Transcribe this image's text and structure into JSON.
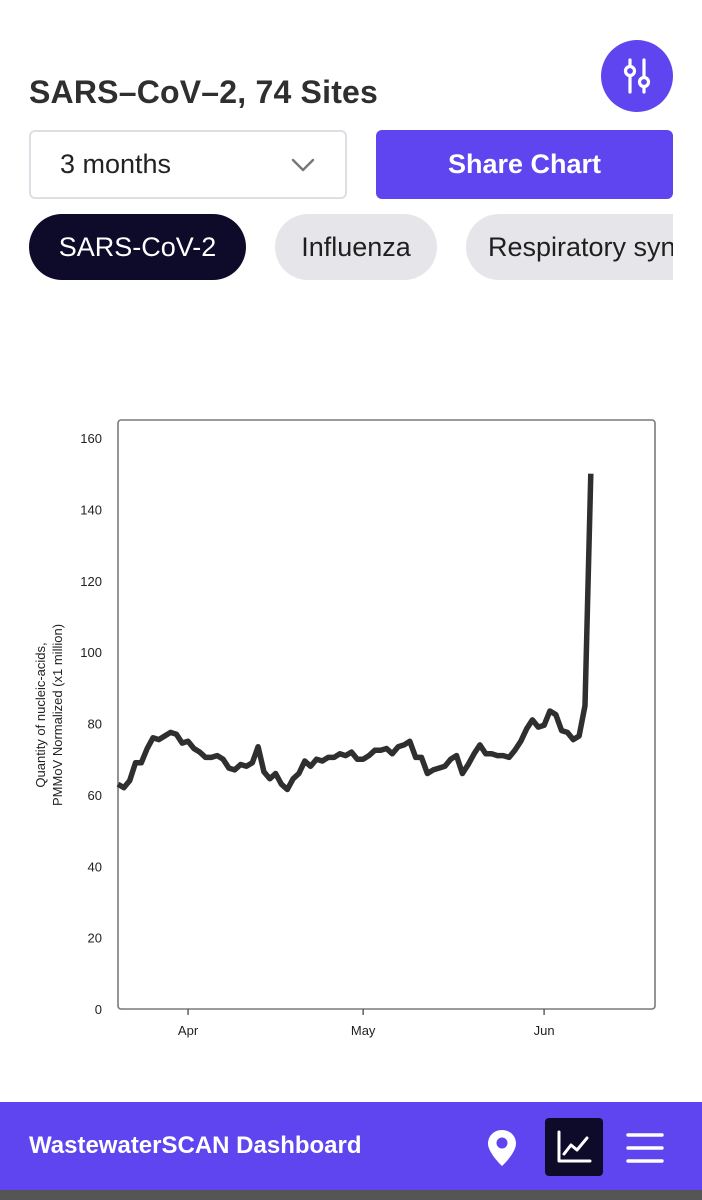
{
  "colors": {
    "accent": "#5f45f0",
    "dark": "#0e0a2a",
    "line": "#2f2f2f"
  },
  "header": {
    "title": "SARS–CoV–2, 74 Sites",
    "filter_icon": "sliders-icon"
  },
  "controls": {
    "range_value": "3 months",
    "range_icon": "chevron-down-icon",
    "share_label": "Share Chart"
  },
  "pathogens": [
    {
      "label": "SARS-CoV-2",
      "active": true
    },
    {
      "label": "Influenza",
      "active": false
    },
    {
      "label": "Respiratory syncytial virus",
      "active": false
    }
  ],
  "chart_data": {
    "type": "line",
    "title": "",
    "xlabel": "",
    "ylabel": [
      "Quantity of nucleic-acids,",
      "PMMoV Normalized (x1 million)"
    ],
    "ylim": [
      0,
      160
    ],
    "yticks": [
      0,
      20,
      40,
      60,
      80,
      100,
      120,
      140,
      160
    ],
    "xlim": [
      "2023-03-20",
      "2023-06-20"
    ],
    "xticks": [
      {
        "label": "Apr",
        "date": "2023-04-01"
      },
      {
        "label": "May",
        "date": "2023-05-01"
      },
      {
        "label": "Jun",
        "date": "2023-06-01"
      }
    ],
    "grid": false,
    "series": [
      {
        "name": "",
        "points": [
          [
            "2023-03-20",
            63
          ],
          [
            "2023-03-21",
            62
          ],
          [
            "2023-03-22",
            64
          ],
          [
            "2023-03-23",
            69
          ],
          [
            "2023-03-24",
            69
          ],
          [
            "2023-03-25",
            73
          ],
          [
            "2023-03-26",
            76
          ],
          [
            "2023-03-27",
            75.5
          ],
          [
            "2023-03-28",
            76.5
          ],
          [
            "2023-03-29",
            77.5
          ],
          [
            "2023-03-30",
            77
          ],
          [
            "2023-03-31",
            74.5
          ],
          [
            "2023-04-01",
            75
          ],
          [
            "2023-04-02",
            73
          ],
          [
            "2023-04-03",
            72
          ],
          [
            "2023-04-04",
            70.5
          ],
          [
            "2023-04-05",
            70.5
          ],
          [
            "2023-04-06",
            71
          ],
          [
            "2023-04-07",
            70
          ],
          [
            "2023-04-08",
            67.5
          ],
          [
            "2023-04-09",
            67
          ],
          [
            "2023-04-10",
            68.5
          ],
          [
            "2023-04-11",
            68
          ],
          [
            "2023-04-12",
            69
          ],
          [
            "2023-04-13",
            73.5
          ],
          [
            "2023-04-14",
            66.5
          ],
          [
            "2023-04-15",
            64.5
          ],
          [
            "2023-04-16",
            66
          ],
          [
            "2023-04-17",
            63
          ],
          [
            "2023-04-18",
            61.5
          ],
          [
            "2023-04-19",
            64.5
          ],
          [
            "2023-04-20",
            66
          ],
          [
            "2023-04-21",
            69.5
          ],
          [
            "2023-04-22",
            68
          ],
          [
            "2023-04-23",
            70
          ],
          [
            "2023-04-24",
            69.5
          ],
          [
            "2023-04-25",
            70.5
          ],
          [
            "2023-04-26",
            70.5
          ],
          [
            "2023-04-27",
            71.5
          ],
          [
            "2023-04-28",
            71
          ],
          [
            "2023-04-29",
            72
          ],
          [
            "2023-04-30",
            70
          ],
          [
            "2023-05-01",
            70
          ],
          [
            "2023-05-02",
            71
          ],
          [
            "2023-05-03",
            72.5
          ],
          [
            "2023-05-04",
            72.5
          ],
          [
            "2023-05-05",
            73
          ],
          [
            "2023-05-06",
            71.5
          ],
          [
            "2023-05-07",
            73.5
          ],
          [
            "2023-05-08",
            74
          ],
          [
            "2023-05-09",
            75
          ],
          [
            "2023-05-10",
            70.5
          ],
          [
            "2023-05-11",
            70.5
          ],
          [
            "2023-05-12",
            66
          ],
          [
            "2023-05-13",
            67
          ],
          [
            "2023-05-14",
            67.5
          ],
          [
            "2023-05-15",
            68
          ],
          [
            "2023-05-16",
            70
          ],
          [
            "2023-05-17",
            71
          ],
          [
            "2023-05-18",
            66
          ],
          [
            "2023-05-19",
            68.5
          ],
          [
            "2023-05-20",
            71.5
          ],
          [
            "2023-05-21",
            74
          ],
          [
            "2023-05-22",
            71.5
          ],
          [
            "2023-05-23",
            71.5
          ],
          [
            "2023-05-24",
            71
          ],
          [
            "2023-05-25",
            71
          ],
          [
            "2023-05-26",
            70.5
          ],
          [
            "2023-05-27",
            72.5
          ],
          [
            "2023-05-28",
            75
          ],
          [
            "2023-05-29",
            78.5
          ],
          [
            "2023-05-30",
            81
          ],
          [
            "2023-05-31",
            79
          ],
          [
            "2023-06-01",
            79.5
          ],
          [
            "2023-06-02",
            83.5
          ],
          [
            "2023-06-03",
            82.5
          ],
          [
            "2023-06-04",
            78
          ],
          [
            "2023-06-05",
            77.5
          ],
          [
            "2023-06-06",
            75.5
          ],
          [
            "2023-06-07",
            76.5
          ],
          [
            "2023-06-08",
            85
          ],
          [
            "2023-06-09",
            150
          ]
        ]
      }
    ]
  },
  "bottom_nav": {
    "brand": "WastewaterSCAN Dashboard",
    "icons": [
      "map-pin-icon",
      "line-chart-icon",
      "hamburger-menu-icon"
    ]
  }
}
